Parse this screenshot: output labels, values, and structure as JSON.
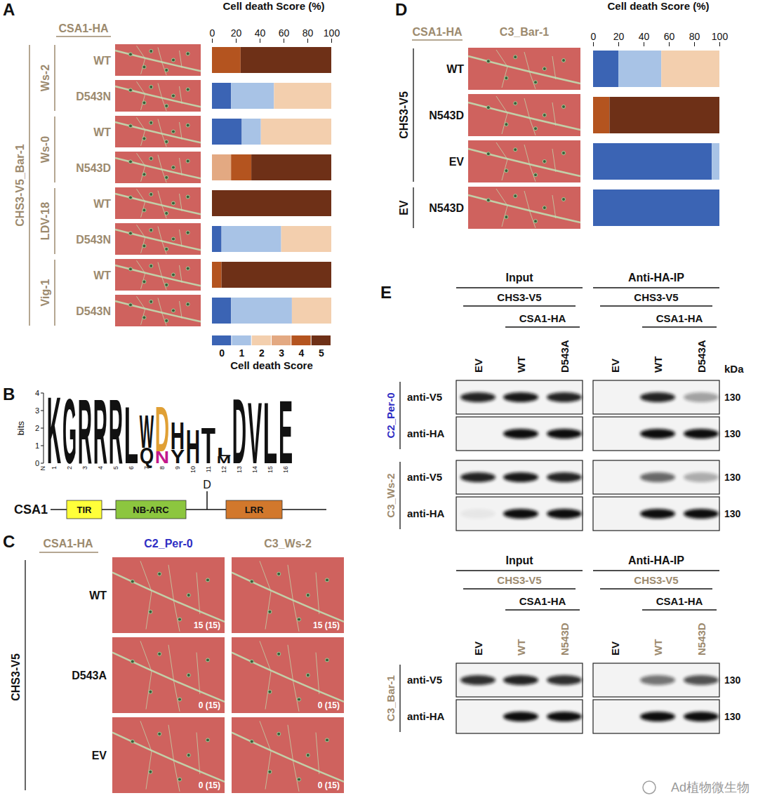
{
  "chart_data": [
    {
      "panel": "A",
      "type": "bar",
      "orientation": "horizontal",
      "stacked": true,
      "xlabel": "Cell death Score (%)",
      "xlim": [
        0,
        100
      ],
      "xticks": [
        0,
        20,
        40,
        60,
        80,
        100
      ],
      "header": "CSA1-HA",
      "outer_label": "CHS3-V5_Bar-1",
      "groups": [
        {
          "label": "Ws-2",
          "size": 2
        },
        {
          "label": "Ws-0",
          "size": 2
        },
        {
          "label": "LDV-18",
          "size": 2
        },
        {
          "label": "Vig-1",
          "size": 2
        }
      ],
      "categories": [
        "WT",
        "D543N",
        "WT",
        "N543D",
        "WT",
        "D543N",
        "WT",
        "D543N"
      ],
      "legend": "bottom",
      "legend_title": "Cell death Score",
      "series": [
        {
          "name": "0",
          "color": "#3b64b4",
          "values": [
            0,
            16,
            25,
            0,
            0,
            8,
            0,
            16
          ]
        },
        {
          "name": "1",
          "color": "#a8c3e6",
          "values": [
            0,
            36,
            16,
            0,
            0,
            50,
            0,
            51
          ]
        },
        {
          "name": "2",
          "color": "#f3cfae",
          "values": [
            0,
            48,
            59,
            0,
            0,
            42,
            0,
            33
          ]
        },
        {
          "name": "3",
          "color": "#e3a982",
          "values": [
            0,
            0,
            0,
            16,
            0,
            0,
            0,
            0
          ]
        },
        {
          "name": "4",
          "color": "#b4541f",
          "values": [
            24,
            0,
            0,
            17,
            0,
            0,
            8,
            0
          ]
        },
        {
          "name": "5",
          "color": "#6e3017",
          "values": [
            76,
            0,
            0,
            67,
            100,
            0,
            92,
            0
          ]
        }
      ]
    },
    {
      "panel": "D",
      "type": "bar",
      "orientation": "horizontal",
      "stacked": true,
      "xlabel": "Cell death Score (%)",
      "xlim": [
        0,
        100
      ],
      "xticks": [
        0,
        20,
        40,
        60,
        80,
        100
      ],
      "header": "CSA1-HA",
      "photo_header": "C3_Bar-1",
      "groups": [
        {
          "label": "CHS3-V5",
          "size": 3
        },
        {
          "label": "EV",
          "size": 1
        }
      ],
      "categories": [
        "WT",
        "N543D",
        "EV",
        "N543D"
      ],
      "series": [
        {
          "name": "0",
          "color": "#3b64b4",
          "values": [
            20,
            0,
            94,
            100
          ]
        },
        {
          "name": "1",
          "color": "#a8c3e6",
          "values": [
            34,
            0,
            6,
            0
          ]
        },
        {
          "name": "2",
          "color": "#f3cfae",
          "values": [
            46,
            0,
            0,
            0
          ]
        },
        {
          "name": "3",
          "color": "#e3a982",
          "values": [
            0,
            0,
            0,
            0
          ]
        },
        {
          "name": "4",
          "color": "#b4541f",
          "values": [
            0,
            13,
            0,
            0
          ]
        },
        {
          "name": "5",
          "color": "#6e3017",
          "values": [
            0,
            87,
            0,
            0
          ]
        }
      ]
    }
  ],
  "figure": {
    "B": {
      "panel": "B",
      "ylabel": "bits",
      "ylim": [
        0,
        4
      ],
      "yticks": [
        0,
        1,
        2,
        3,
        4
      ],
      "terminus": "N",
      "positions": [
        {
          "x": 1,
          "letters": [
            {
              "letter": "K",
              "bits": 3.9
            }
          ]
        },
        {
          "x": 2,
          "letters": [
            {
              "letter": "G",
              "bits": 3.8
            }
          ]
        },
        {
          "x": 3,
          "letters": [
            {
              "letter": "R",
              "bits": 3.8
            }
          ]
        },
        {
          "x": 4,
          "letters": [
            {
              "letter": "R",
              "bits": 3.8
            }
          ]
        },
        {
          "x": 5,
          "letters": [
            {
              "letter": "R",
              "bits": 3.8
            }
          ]
        },
        {
          "x": 6,
          "letters": [
            {
              "letter": "L",
              "bits": 3.3
            }
          ]
        },
        {
          "x": 7,
          "letters": [
            {
              "letter": "W",
              "bits": 1.9
            },
            {
              "letter": "Q",
              "bits": 0.9
            }
          ]
        },
        {
          "x": 8,
          "letters": [
            {
              "letter": "D",
              "bits": 2.6,
              "color": "#e0a035"
            },
            {
              "letter": "N",
              "bits": 0.7,
              "color": "#c2188b"
            }
          ]
        },
        {
          "x": 9,
          "letters": [
            {
              "letter": "H",
              "bits": 1.6
            },
            {
              "letter": "Y",
              "bits": 0.8
            }
          ]
        },
        {
          "x": 10,
          "letters": [
            {
              "letter": "H",
              "bits": 2.0
            }
          ]
        },
        {
          "x": 11,
          "letters": [
            {
              "letter": "T",
              "bits": 2.1
            }
          ]
        },
        {
          "x": 12,
          "letters": [
            {
              "letter": "L",
              "bits": 0.5
            },
            {
              "letter": "M",
              "bits": 0.4
            }
          ]
        },
        {
          "x": 13,
          "letters": [
            {
              "letter": "D",
              "bits": 3.8
            }
          ]
        },
        {
          "x": 14,
          "letters": [
            {
              "letter": "V",
              "bits": 3.6
            }
          ]
        },
        {
          "x": 15,
          "letters": [
            {
              "letter": "L",
              "bits": 3.6
            }
          ]
        },
        {
          "x": 16,
          "letters": [
            {
              "letter": "E",
              "bits": 3.7
            }
          ]
        }
      ],
      "protein": "CSA1",
      "domains": [
        {
          "label": "TIR",
          "color": "#ffff3a"
        },
        {
          "label": "NB-ARC",
          "color": "#8cc63f"
        },
        {
          "label": "LRR",
          "color": "#d2782c"
        }
      ],
      "site": "D"
    },
    "C": {
      "panel": "C",
      "header": "CSA1-HA",
      "side_label": "CHS3-V5",
      "columns": [
        {
          "label": "C2_Per-0",
          "color": "#2e2ec4"
        },
        {
          "label": "C3_Ws-2",
          "color": "#9c8a6e"
        }
      ],
      "rows": [
        "WT",
        "D543A",
        "EV"
      ],
      "counts": [
        [
          "15 (15)",
          "15 (15)"
        ],
        [
          "0 (15)",
          "0 (15)"
        ],
        [
          "0 (15)",
          "0 (15)"
        ]
      ]
    },
    "E": {
      "panel": "E",
      "blocks": [
        {
          "unit": "kDa",
          "sections": [
            "Input",
            "Anti-HA-IP"
          ],
          "construct": "CHS3-V5",
          "construct_color": "#111111",
          "tag": "CSA1-HA",
          "tag_color": "#111111",
          "lanes": [
            "EV",
            "WT",
            "D543A"
          ],
          "lane_colors": [
            "#111111",
            "#111111",
            "#111111"
          ],
          "groups": [
            {
              "label": "C2_Per-0",
              "color": "#2e2ec4",
              "blots": [
                {
                  "antibody": "anti-V5",
                  "marker": 130,
                  "input": [
                    0.9,
                    0.95,
                    0.9
                  ],
                  "ip": [
                    0,
                    0.9,
                    0.35
                  ]
                },
                {
                  "antibody": "anti-HA",
                  "marker": 130,
                  "input": [
                    0,
                    1,
                    1
                  ],
                  "ip": [
                    0,
                    1,
                    1
                  ]
                }
              ]
            },
            {
              "label": "C3_Ws-2",
              "color": "#9c8a6e",
              "blots": [
                {
                  "antibody": "anti-V5",
                  "marker": 130,
                  "input": [
                    0.9,
                    0.95,
                    0.9
                  ],
                  "ip": [
                    0,
                    0.6,
                    0.3
                  ]
                },
                {
                  "antibody": "anti-HA",
                  "marker": 130,
                  "input": [
                    0.05,
                    1,
                    1
                  ],
                  "ip": [
                    0,
                    1,
                    1
                  ]
                }
              ]
            }
          ]
        },
        {
          "sections": [
            "Input",
            "Anti-HA-IP"
          ],
          "construct": "CHS3-V5",
          "construct_color": "#9c8a6e",
          "tag": "CSA1-HA",
          "tag_color": "#111111",
          "lanes": [
            "EV",
            "WT",
            "N543D"
          ],
          "lane_colors": [
            "#111111",
            "#9c8a6e",
            "#9c8a6e"
          ],
          "groups": [
            {
              "label": "C3_Bar-1",
              "color": "#9c8a6e",
              "blots": [
                {
                  "antibody": "anti-V5",
                  "marker": 130,
                  "input": [
                    0.85,
                    0.9,
                    0.85
                  ],
                  "ip": [
                    0,
                    0.55,
                    0.7
                  ]
                },
                {
                  "antibody": "anti-HA",
                  "marker": 130,
                  "input": [
                    0,
                    1,
                    1
                  ],
                  "ip": [
                    0,
                    1,
                    1
                  ]
                }
              ]
            }
          ]
        }
      ]
    },
    "watermark": "Ad植物微生物"
  }
}
